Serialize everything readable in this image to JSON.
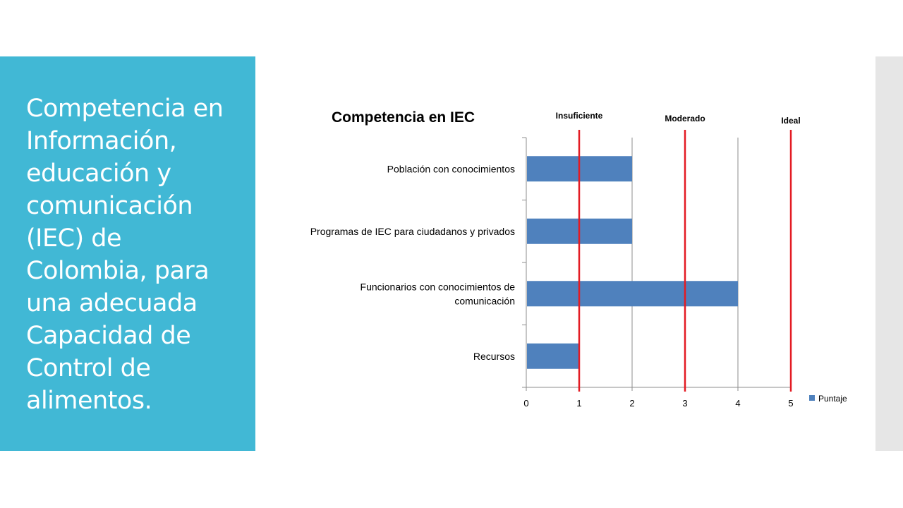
{
  "slide": {
    "title": "Competencia en Información, educación y comunicación (IEC) de Colombia, para una adecuada Capacidad de Control de alimentos.",
    "accent_color": "#41b8d5"
  },
  "chart_data": {
    "type": "bar",
    "orientation": "horizontal",
    "title": "Competencia en IEC",
    "categories": [
      "Población con conocimientos",
      [
        "Programas de IEC para ciudadanos y privados"
      ],
      [
        "Funcionarios con conocimientos de",
        "comunicación"
      ],
      "Recursos"
    ],
    "series": [
      {
        "name": "Puntaje",
        "values": [
          2,
          2,
          4,
          1
        ],
        "color": "#4f81bd"
      }
    ],
    "xlim": [
      0,
      5
    ],
    "xticks": [
      0,
      1,
      2,
      3,
      4,
      5
    ],
    "grid": true,
    "legend": "right",
    "reference_lines": [
      {
        "label": "Insuficiente",
        "value": 1,
        "color": "#e31b23"
      },
      {
        "label": "Moderado",
        "value": 3,
        "color": "#e31b23"
      },
      {
        "label": "Ideal",
        "value": 5,
        "color": "#e31b23"
      }
    ]
  }
}
